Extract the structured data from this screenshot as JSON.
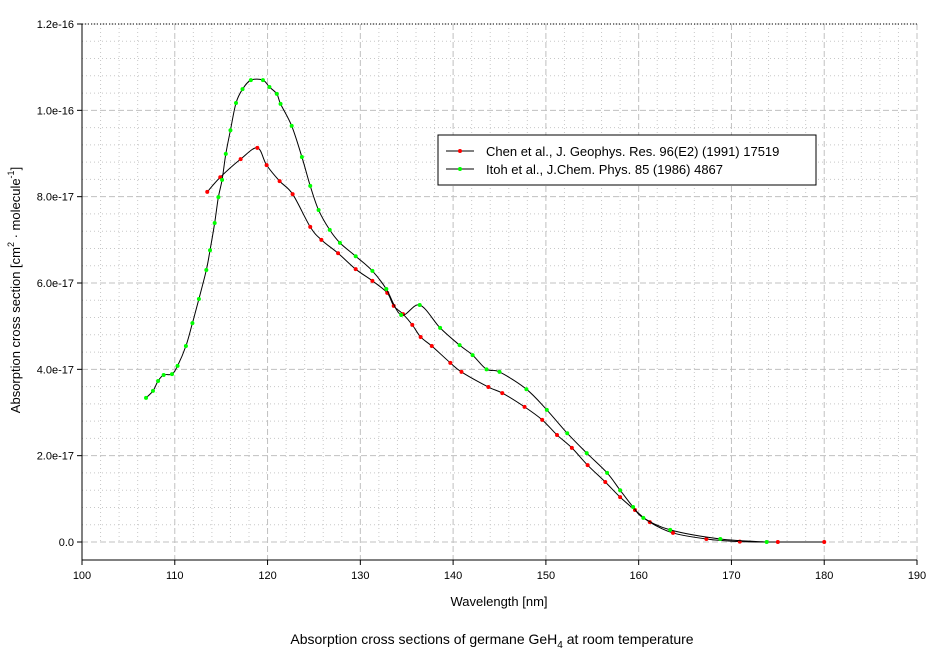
{
  "chart_data": {
    "type": "line",
    "title": "Absorption cross sections of germane GeH",
    "title_sub": "4",
    "title_tail": " at room temperature",
    "xlabel": "Wavelength [nm]",
    "ylabel_pre": "Absorption cross section [cm",
    "ylabel_sup1": "2",
    "ylabel_mid": " · molecule",
    "ylabel_sup2": "-1",
    "ylabel_post": "]",
    "xlim": [
      100,
      190
    ],
    "ylim": [
      0,
      1.2e-16
    ],
    "xticks": [
      100,
      110,
      120,
      130,
      140,
      150,
      160,
      170,
      180,
      190
    ],
    "xtick_labels": [
      "100",
      "110",
      "120",
      "130",
      "140",
      "150",
      "160",
      "170",
      "180",
      "190"
    ],
    "yticks": [
      0,
      2e-17,
      4e-17,
      6e-17,
      8e-17,
      1e-16,
      1.2e-16
    ],
    "ytick_labels": [
      "0.0",
      "2.0e-17",
      "4.0e-17",
      "6.0e-17",
      "8.0e-17",
      "1.0e-16",
      "1.2e-16"
    ],
    "grid": true,
    "legend_position": "upper-right",
    "y_unit_scale": 1e-17,
    "series": [
      {
        "name": "Chen et al., J. Geophys. Res. 96(E2) (1991) 17519",
        "color": "#ff0000",
        "x": [
          113.5,
          114.9,
          117.1,
          118.9,
          119.9,
          121.3,
          122.7,
          124.6,
          125.8,
          127.6,
          129.5,
          131.3,
          132.9,
          133.6,
          134.6,
          135.6,
          136.5,
          137.7,
          139.7,
          140.9,
          143.8,
          145.3,
          147.7,
          149.6,
          151.2,
          152.8,
          154.5,
          156.4,
          158.0,
          159.6,
          161.2,
          163.7,
          167.3,
          170.9,
          175,
          180
        ],
        "y": [
          8.11,
          8.45,
          8.87,
          9.13,
          8.73,
          8.36,
          8.06,
          7.3,
          7.0,
          6.69,
          6.32,
          6.05,
          5.77,
          5.47,
          5.28,
          5.03,
          4.75,
          4.54,
          4.15,
          3.94,
          3.59,
          3.45,
          3.13,
          2.83,
          2.48,
          2.18,
          1.78,
          1.39,
          1.04,
          0.74,
          0.46,
          0.21,
          0.07,
          0.01,
          0.0,
          0.0
        ]
      },
      {
        "name": "Itoh et al., J.Chem. Phys. 85 (1986) 4867",
        "color": "#00ff00",
        "x": [
          106.9,
          107.65,
          108.2,
          108.8,
          109.7,
          110.3,
          111.2,
          111.9,
          112.6,
          113.4,
          113.8,
          114.3,
          114.7,
          115.1,
          115.5,
          116.0,
          116.6,
          117.3,
          118.2,
          119.5,
          120.2,
          121.0,
          121.4,
          122.6,
          123.7,
          124.6,
          125.5,
          126.7,
          127.8,
          129.5,
          131.3,
          132.8,
          134.4,
          136.4,
          138.6,
          140.7,
          142.1,
          143.6,
          145.0,
          147.9,
          150.1,
          152.3,
          154.4,
          156.6,
          158.0,
          159.4,
          160.5,
          163.4,
          168.8,
          173.8
        ],
        "y": [
          3.34,
          3.5,
          3.73,
          3.87,
          3.89,
          4.08,
          4.54,
          5.07,
          5.63,
          6.3,
          6.76,
          7.39,
          7.99,
          8.39,
          8.99,
          9.54,
          10.17,
          10.49,
          10.7,
          10.7,
          10.54,
          10.38,
          10.15,
          9.64,
          8.92,
          8.25,
          7.69,
          7.23,
          6.93,
          6.62,
          6.28,
          5.86,
          5.26,
          5.49,
          4.96,
          4.56,
          4.33,
          4.0,
          3.94,
          3.54,
          3.06,
          2.52,
          2.06,
          1.6,
          1.2,
          0.81,
          0.56,
          0.28,
          0.07,
          0.0
        ]
      }
    ]
  }
}
